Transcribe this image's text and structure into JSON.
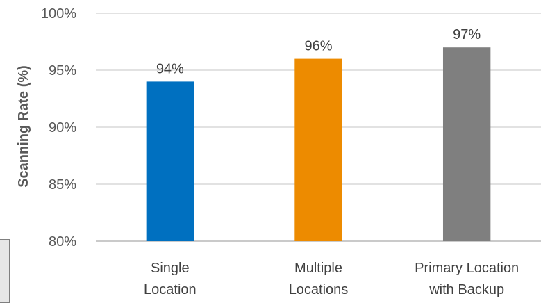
{
  "chart_data": {
    "type": "bar",
    "title": "",
    "xlabel": "",
    "ylabel": "Scanning Rate (%)",
    "categories": [
      [
        "Single",
        "Location"
      ],
      [
        "Multiple",
        "Locations"
      ],
      [
        "Primary Location",
        "with Backup"
      ]
    ],
    "values": [
      94,
      96,
      97
    ],
    "data_labels": [
      "94%",
      "96%",
      "97%"
    ],
    "colors": [
      "#0070c0",
      "#ed8b00",
      "#7f7f7f"
    ],
    "ylim": [
      80,
      100
    ],
    "yticks": [
      80,
      85,
      90,
      95,
      100
    ],
    "ytick_labels": [
      "80%",
      "85%",
      "90%",
      "95%",
      "100%"
    ],
    "grid": true,
    "legend": "none"
  }
}
